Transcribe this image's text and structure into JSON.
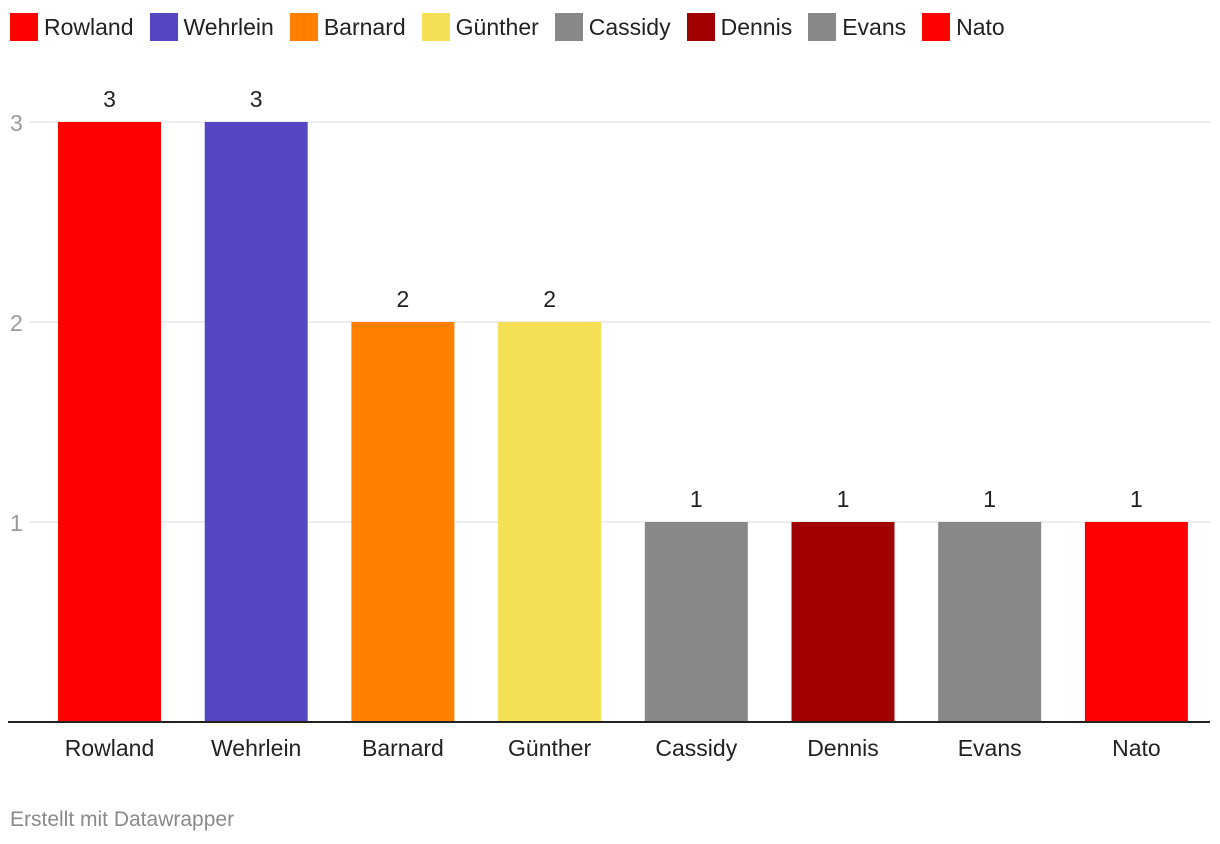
{
  "chart_data": {
    "type": "bar",
    "categories": [
      "Rowland",
      "Wehrlein",
      "Barnard",
      "Günther",
      "Cassidy",
      "Dennis",
      "Evans",
      "Nato"
    ],
    "values": [
      3,
      3,
      2,
      2,
      1,
      1,
      1,
      1
    ],
    "colors": [
      "#ff0000",
      "#5546c4",
      "#ff8000",
      "#f5df55",
      "#888888",
      "#a00000",
      "#888888",
      "#ff0000"
    ],
    "yticks": [
      1,
      2,
      3
    ],
    "ylim": [
      0,
      3.5
    ],
    "grid": true,
    "legend_position": "top-left",
    "data_labels": true
  },
  "legend": {
    "items": [
      {
        "label": "Rowland",
        "color": "#ff0000"
      },
      {
        "label": "Wehrlein",
        "color": "#5546c4"
      },
      {
        "label": "Barnard",
        "color": "#ff8000"
      },
      {
        "label": "Günther",
        "color": "#f5df55"
      },
      {
        "label": "Cassidy",
        "color": "#888888"
      },
      {
        "label": "Dennis",
        "color": "#a00000"
      },
      {
        "label": "Evans",
        "color": "#888888"
      },
      {
        "label": "Nato",
        "color": "#ff0000"
      }
    ]
  },
  "footer": {
    "credit": "Erstellt mit Datawrapper"
  }
}
